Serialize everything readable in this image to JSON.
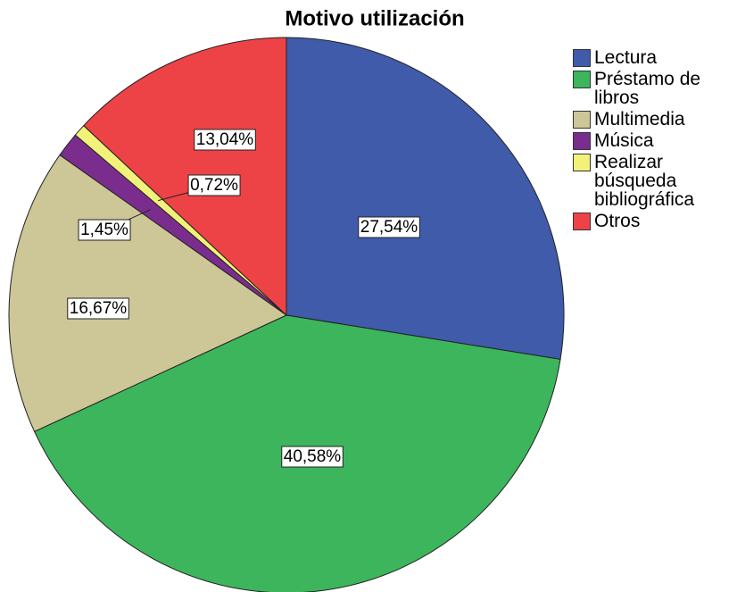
{
  "chart_data": {
    "type": "pie",
    "title": "Motivo utilización",
    "categories": [
      "Lectura",
      "Préstamo de libros",
      "Multimedia",
      "Música",
      "Realizar búsqueda bibliográfica",
      "Otros"
    ],
    "values": [
      27.54,
      40.58,
      16.67,
      1.45,
      0.72,
      13.04
    ],
    "value_labels": [
      "27,54%",
      "40,58%",
      "16,67%",
      "1,45%",
      "0,72%",
      "13,04%"
    ],
    "colors": [
      "#3f5ba9",
      "#3cb55c",
      "#cdc696",
      "#7b2d8e",
      "#f2f27a",
      "#ee4346"
    ],
    "legend": "right"
  }
}
